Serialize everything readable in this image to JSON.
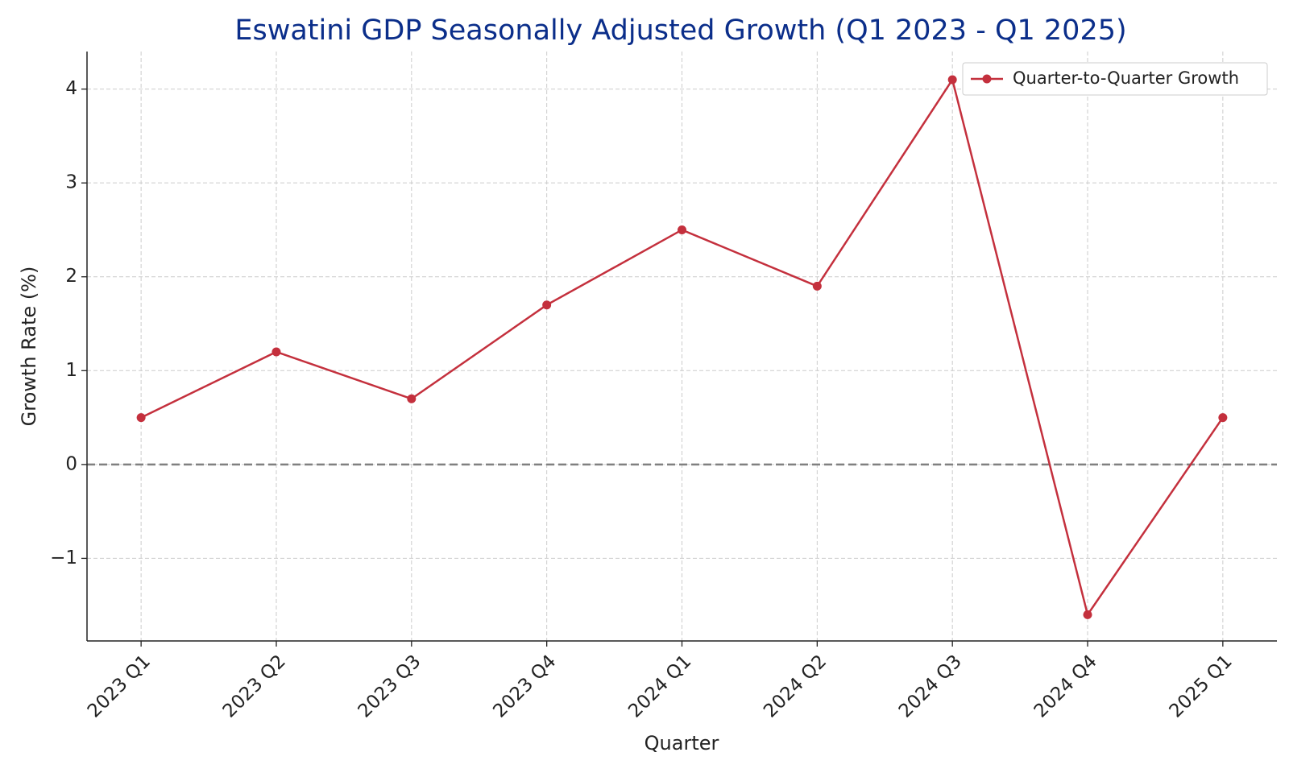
{
  "chart_data": {
    "type": "line",
    "title": "Eswatini GDP Seasonally Adjusted Growth (Q1 2023 - Q1 2025)",
    "x_label": "Quarter",
    "y_label": "Growth Rate (%)",
    "categories": [
      "2023 Q1",
      "2023 Q2",
      "2023 Q3",
      "2023 Q4",
      "2024 Q1",
      "2024 Q2",
      "2024 Q3",
      "2024 Q4",
      "2025 Q1"
    ],
    "series": [
      {
        "name": "Quarter-to-Quarter Growth",
        "color": "#c4303d",
        "values": [
          0.5,
          1.2,
          0.7,
          1.7,
          2.5,
          1.9,
          4.1,
          -1.6,
          0.5
        ]
      }
    ],
    "ylim": [
      -1.88,
      4.4
    ],
    "yticks": [
      {
        "value": -1,
        "label": "−1"
      },
      0,
      1,
      2,
      3,
      4
    ],
    "grid": true,
    "zero_line": true,
    "legend": "upper right",
    "title_color": "#0b2e8a"
  }
}
